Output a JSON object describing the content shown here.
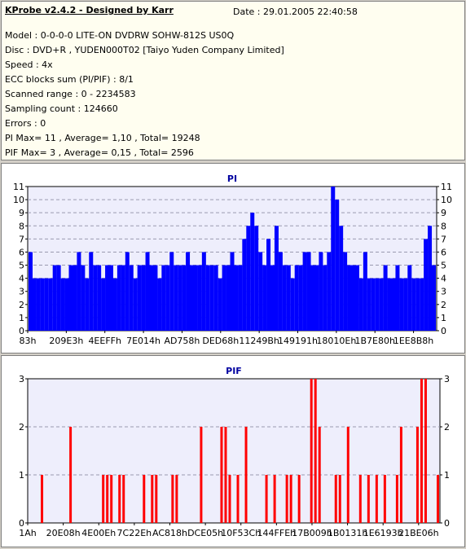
{
  "info": {
    "title": "KProbe v2.4.2 - Designed by Karr",
    "date": "Date : 29.01.2005 22:40:58",
    "lines": [
      "Model : 0-0-0-0 LITE-ON DVDRW SOHW-812S  US0Q",
      "Disc : DVD+R , YUDEN000T02 [Taiyo Yuden Company Limited]",
      "Speed : 4x",
      "ECC blocks sum (PI/PIF) : 8/1",
      "Scanned range : 0 - 2234583",
      "Sampling count : 124660",
      "Errors : 0",
      "PI Max= 11 , Average= 1,10 , Total= 19248",
      "PIF Max= 3 , Average= 0,15 , Total= 2596"
    ]
  },
  "colors": {
    "pi": "#0000ff",
    "pif": "#ff0000",
    "title": "#0000a0",
    "plot_bg": "#eeeefc",
    "grid": "#9a9ab0"
  },
  "chart_data": [
    {
      "type": "bar",
      "title": "PI",
      "xlabel": "",
      "ylabel": "",
      "ylim": [
        0,
        11
      ],
      "yticks": [
        0,
        1,
        2,
        3,
        4,
        5,
        6,
        7,
        8,
        9,
        10,
        11
      ],
      "xticks": [
        "83h",
        "209E3h",
        "4EEFFh",
        "7E014h",
        "AD758h",
        "DED68h",
        "11249Bh",
        "149191h",
        "18010Eh",
        "1B7E80h",
        "1EE8B8h"
      ],
      "grid": true,
      "x": [
        0.0,
        0.01,
        0.02,
        0.03,
        0.04,
        0.05,
        0.06,
        0.07,
        0.08,
        0.09,
        0.1,
        0.11,
        0.12,
        0.13,
        0.14,
        0.15,
        0.16,
        0.17,
        0.18,
        0.19,
        0.2,
        0.21,
        0.22,
        0.23,
        0.24,
        0.25,
        0.26,
        0.27,
        0.28,
        0.29,
        0.3,
        0.31,
        0.32,
        0.33,
        0.34,
        0.35,
        0.36,
        0.37,
        0.38,
        0.39,
        0.4,
        0.41,
        0.42,
        0.43,
        0.44,
        0.45,
        0.46,
        0.47,
        0.48,
        0.49,
        0.5,
        0.51,
        0.52,
        0.53,
        0.54,
        0.55,
        0.56,
        0.57,
        0.58,
        0.59,
        0.6,
        0.61,
        0.62,
        0.63,
        0.64,
        0.65,
        0.66,
        0.67,
        0.68,
        0.69,
        0.7,
        0.71,
        0.72,
        0.73,
        0.74,
        0.75,
        0.76,
        0.77,
        0.78,
        0.79,
        0.8,
        0.81,
        0.82,
        0.83,
        0.84,
        0.85,
        0.86,
        0.87,
        0.88,
        0.89,
        0.9,
        0.91,
        0.92,
        0.93,
        0.94,
        0.95,
        0.96,
        0.97,
        0.98,
        0.99,
        1.0
      ],
      "values": [
        6,
        4,
        4,
        4,
        4,
        4,
        5,
        5,
        4,
        4,
        5,
        5,
        6,
        5,
        4,
        6,
        5,
        5,
        4,
        5,
        5,
        4,
        5,
        5,
        6,
        5,
        4,
        5,
        5,
        6,
        5,
        5,
        4,
        5,
        5,
        6,
        5,
        5,
        5,
        6,
        5,
        5,
        5,
        6,
        5,
        5,
        5,
        4,
        5,
        5,
        6,
        5,
        5,
        7,
        8,
        9,
        8,
        6,
        5,
        7,
        5,
        8,
        6,
        5,
        5,
        4,
        5,
        5,
        6,
        6,
        5,
        5,
        6,
        5,
        6,
        11,
        10,
        8,
        6,
        5,
        5,
        5,
        4,
        6,
        4,
        4,
        4,
        4,
        5,
        4,
        4,
        5,
        4,
        4,
        5,
        4,
        4,
        4,
        7,
        8,
        5
      ]
    },
    {
      "type": "bar",
      "title": "PIF",
      "xlabel": "",
      "ylabel": "",
      "ylim": [
        0,
        3
      ],
      "yticks": [
        0,
        1,
        2,
        3
      ],
      "xticks": [
        "1Ah",
        "20E08h",
        "4E00Eh",
        "7C22Eh",
        "AC818h",
        "DCE05h",
        "10F53Ch",
        "144FFEh",
        "17B009h",
        "1B0131h",
        "1E6193h",
        "21BE06h"
      ],
      "grid": true,
      "x": [
        0.03,
        0.1,
        0.18,
        0.19,
        0.2,
        0.22,
        0.23,
        0.28,
        0.3,
        0.31,
        0.35,
        0.36,
        0.42,
        0.47,
        0.48,
        0.49,
        0.51,
        0.53,
        0.58,
        0.6,
        0.63,
        0.64,
        0.66,
        0.69,
        0.7,
        0.71,
        0.75,
        0.76,
        0.78,
        0.81,
        0.83,
        0.85,
        0.87,
        0.9,
        0.91,
        0.95,
        0.96,
        0.97,
        1.0
      ],
      "values": [
        1,
        2,
        1,
        1,
        1,
        1,
        1,
        1,
        1,
        1,
        1,
        1,
        2,
        2,
        2,
        1,
        1,
        2,
        1,
        1,
        1,
        1,
        1,
        3,
        3,
        2,
        1,
        1,
        2,
        1,
        1,
        1,
        1,
        1,
        2,
        2,
        3,
        3,
        1
      ]
    }
  ]
}
